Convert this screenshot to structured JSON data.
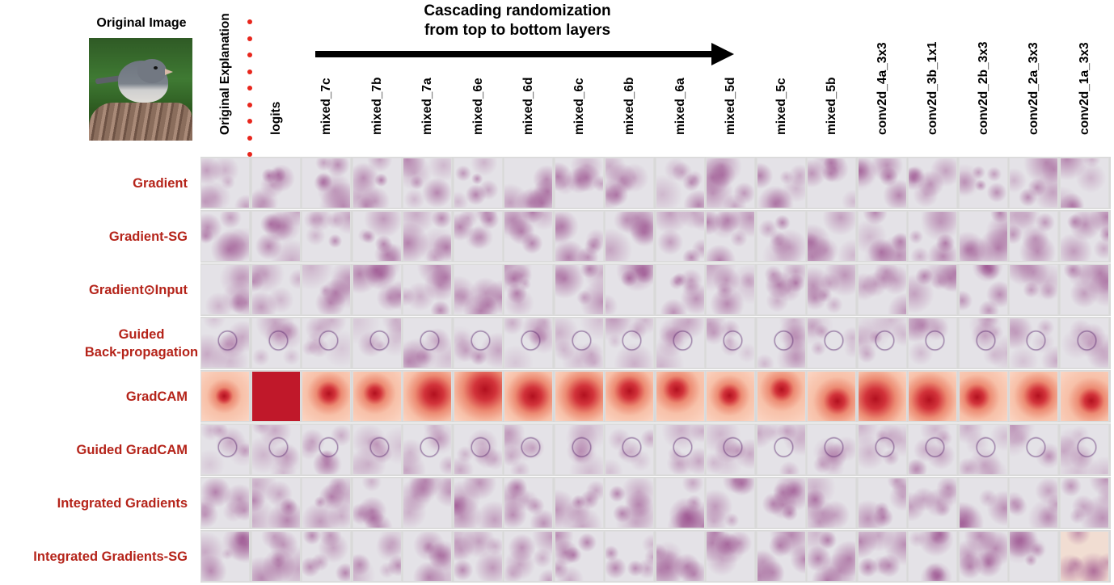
{
  "original_image": {
    "label": "Original Image"
  },
  "arrow": {
    "title_line1": "Cascading randomization",
    "title_line2": "from top to bottom layers"
  },
  "columns": [
    "Original Explanation",
    "logits",
    "mixed_7c",
    "mixed_7b",
    "mixed_7a",
    "mixed_6e",
    "mixed_6d",
    "mixed_6c",
    "mixed_6b",
    "mixed_6a",
    "mixed_5d",
    "mixed_5c",
    "mixed_5b",
    "conv2d_4a_3x3",
    "conv2d_3b_1x1",
    "conv2d_2b_3x3",
    "conv2d_2a_3x3",
    "conv2d_1a_3x3"
  ],
  "rows": [
    {
      "label": "Gradient"
    },
    {
      "label": "Gradient-SG"
    },
    {
      "label": "Gradient⊙Input"
    },
    {
      "label": "Guided Back-propagation",
      "line1": "Guided",
      "line2": "Back-propagation"
    },
    {
      "label": "GradCAM"
    },
    {
      "label": "Guided GradCAM"
    },
    {
      "label": "Integrated Gradients"
    },
    {
      "label": "Integrated Gradients-SG"
    }
  ],
  "colors": {
    "label_red": "#b5241a",
    "dot_red": "#e8261c",
    "saliency_purple": "#8a2f7a",
    "gradcam_red": "#c0182a"
  }
}
